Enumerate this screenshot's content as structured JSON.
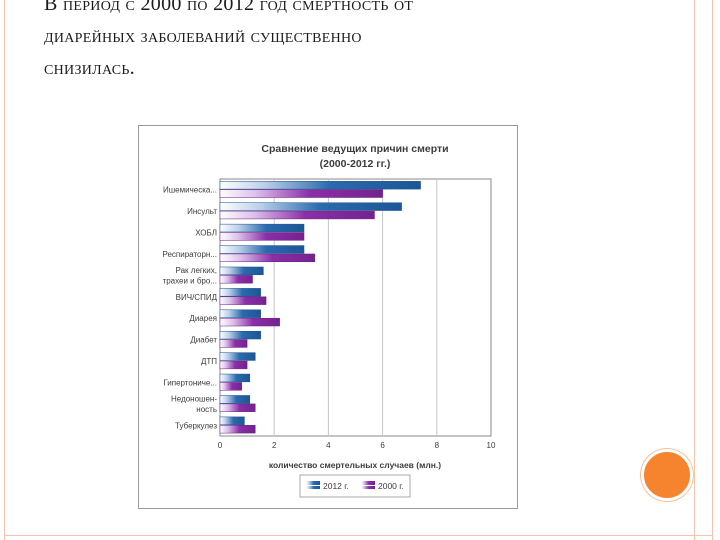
{
  "slide": {
    "heading_lines": [
      "В период с 2000 по 2012 год смертность от",
      "диарейных заболеваний существенно",
      "снизилась."
    ],
    "frame_color": "#f3c3ab",
    "accent_color": "#f6842f"
  },
  "chart_data": {
    "type": "bar",
    "orientation": "horizontal",
    "title": "Сравнение ведущих причин смерти",
    "subtitle": "(2000-2012 гг.)",
    "xlabel": "количество смертельных случаев (млн.)",
    "xlim": [
      0,
      10
    ],
    "xticks": [
      0,
      2,
      4,
      6,
      8,
      10
    ],
    "grid": true,
    "legend_position": "bottom",
    "categories": [
      [
        "Ишемическа..."
      ],
      [
        "Инсульт"
      ],
      [
        "ХОБЛ"
      ],
      [
        "Респираторн..."
      ],
      [
        "Рак легких,",
        "трахеи и бро..."
      ],
      [
        "ВИЧ/СПИД"
      ],
      [
        "Диарея"
      ],
      [
        "Диабет"
      ],
      [
        "ДТП"
      ],
      [
        "Гипертониче..."
      ],
      [
        "Недоношен-",
        "ность"
      ],
      [
        "Туберкулез"
      ]
    ],
    "series": [
      {
        "name": "2012 г.",
        "color": "#2a6aad",
        "values": [
          7.4,
          6.7,
          3.1,
          3.1,
          1.6,
          1.5,
          1.5,
          1.5,
          1.3,
          1.1,
          1.1,
          0.9
        ]
      },
      {
        "name": "2000 г.",
        "color": "#8b2fa8",
        "values": [
          6.0,
          5.7,
          3.1,
          3.5,
          1.2,
          1.7,
          2.2,
          1.0,
          1.0,
          0.8,
          1.3,
          1.3
        ]
      }
    ]
  }
}
